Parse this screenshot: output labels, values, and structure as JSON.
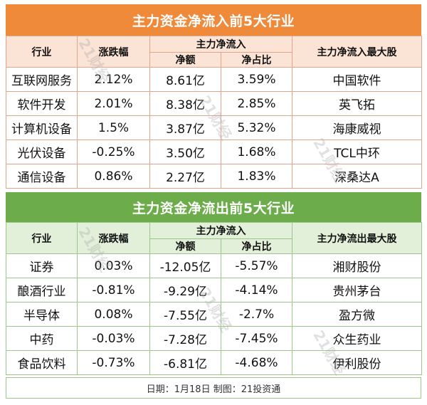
{
  "inflow": {
    "title": "主力资金净流入前5大行业",
    "headers": {
      "industry": "行业",
      "change": "涨跌幅",
      "main_flow": "主力净流入",
      "net": "净额",
      "ratio": "净占比",
      "top_stock": "主力净流入最大股"
    },
    "rows": [
      {
        "industry": "互联网服务",
        "change": "2.12%",
        "net": "8.61亿",
        "ratio": "3.59%",
        "stock": "中国软件"
      },
      {
        "industry": "软件开发",
        "change": "2.01%",
        "net": "8.38亿",
        "ratio": "2.85%",
        "stock": "英飞拓"
      },
      {
        "industry": "计算机设备",
        "change": "1.5%",
        "net": "3.87亿",
        "ratio": "5.32%",
        "stock": "海康威视"
      },
      {
        "industry": "光伏设备",
        "change": "-0.25%",
        "net": "3.50亿",
        "ratio": "1.68%",
        "stock": "TCL中环"
      },
      {
        "industry": "通信设备",
        "change": "0.86%",
        "net": "2.27亿",
        "ratio": "1.83%",
        "stock": "深桑达A"
      }
    ]
  },
  "outflow": {
    "title": "主力资金净流出前5大行业",
    "headers": {
      "industry": "行业",
      "change": "涨跌幅",
      "main_flow": "主力净流入",
      "net": "净额",
      "ratio": "净占比",
      "top_stock": "主力净流出最大股"
    },
    "rows": [
      {
        "industry": "证券",
        "change": "0.03%",
        "net": "-12.05亿",
        "ratio": "-5.57%",
        "stock": "湘财股份"
      },
      {
        "industry": "酿酒行业",
        "change": "-0.81%",
        "net": "-9.29亿",
        "ratio": "-4.14%",
        "stock": "贵州茅台"
      },
      {
        "industry": "半导体",
        "change": "0.08%",
        "net": "-7.55亿",
        "ratio": "-2.7%",
        "stock": "盈方微"
      },
      {
        "industry": "中药",
        "change": "-0.03%",
        "net": "-7.28亿",
        "ratio": "-7.45%",
        "stock": "众生药业"
      },
      {
        "industry": "食品饮料",
        "change": "-0.73%",
        "net": "-6.81亿",
        "ratio": "-4.68%",
        "stock": "伊利股份"
      }
    ]
  },
  "footer": "日期：1月18日 制图：21投资通",
  "watermark": "21财经",
  "colors": {
    "inflow_banner": "#ef8a3b",
    "inflow_header": "#fbe4d6",
    "outflow_banner": "#6cac4b",
    "outflow_header": "#e3f0d9"
  }
}
